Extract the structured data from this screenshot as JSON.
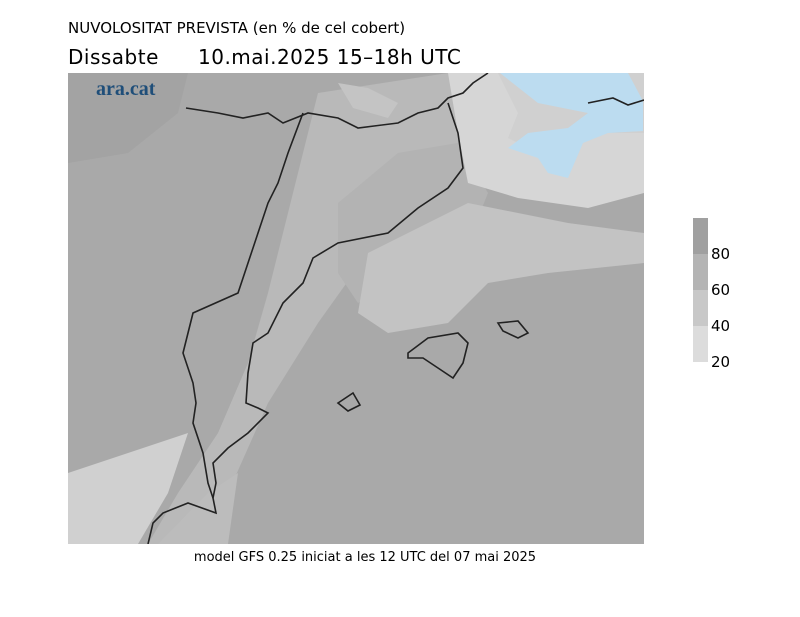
{
  "header": {
    "title": "NUVOLOSITAT PREVISTA (en % de cel cobert)",
    "day": "Dissabte",
    "datetime": "10.mai.2025 15–18h UTC",
    "logo": "ara.cat"
  },
  "legend": {
    "levels": [
      "80",
      "60",
      "40",
      "20"
    ]
  },
  "footer": "model GFS 0.25 iniciat a les 12 UTC del 07 mai 2025"
}
